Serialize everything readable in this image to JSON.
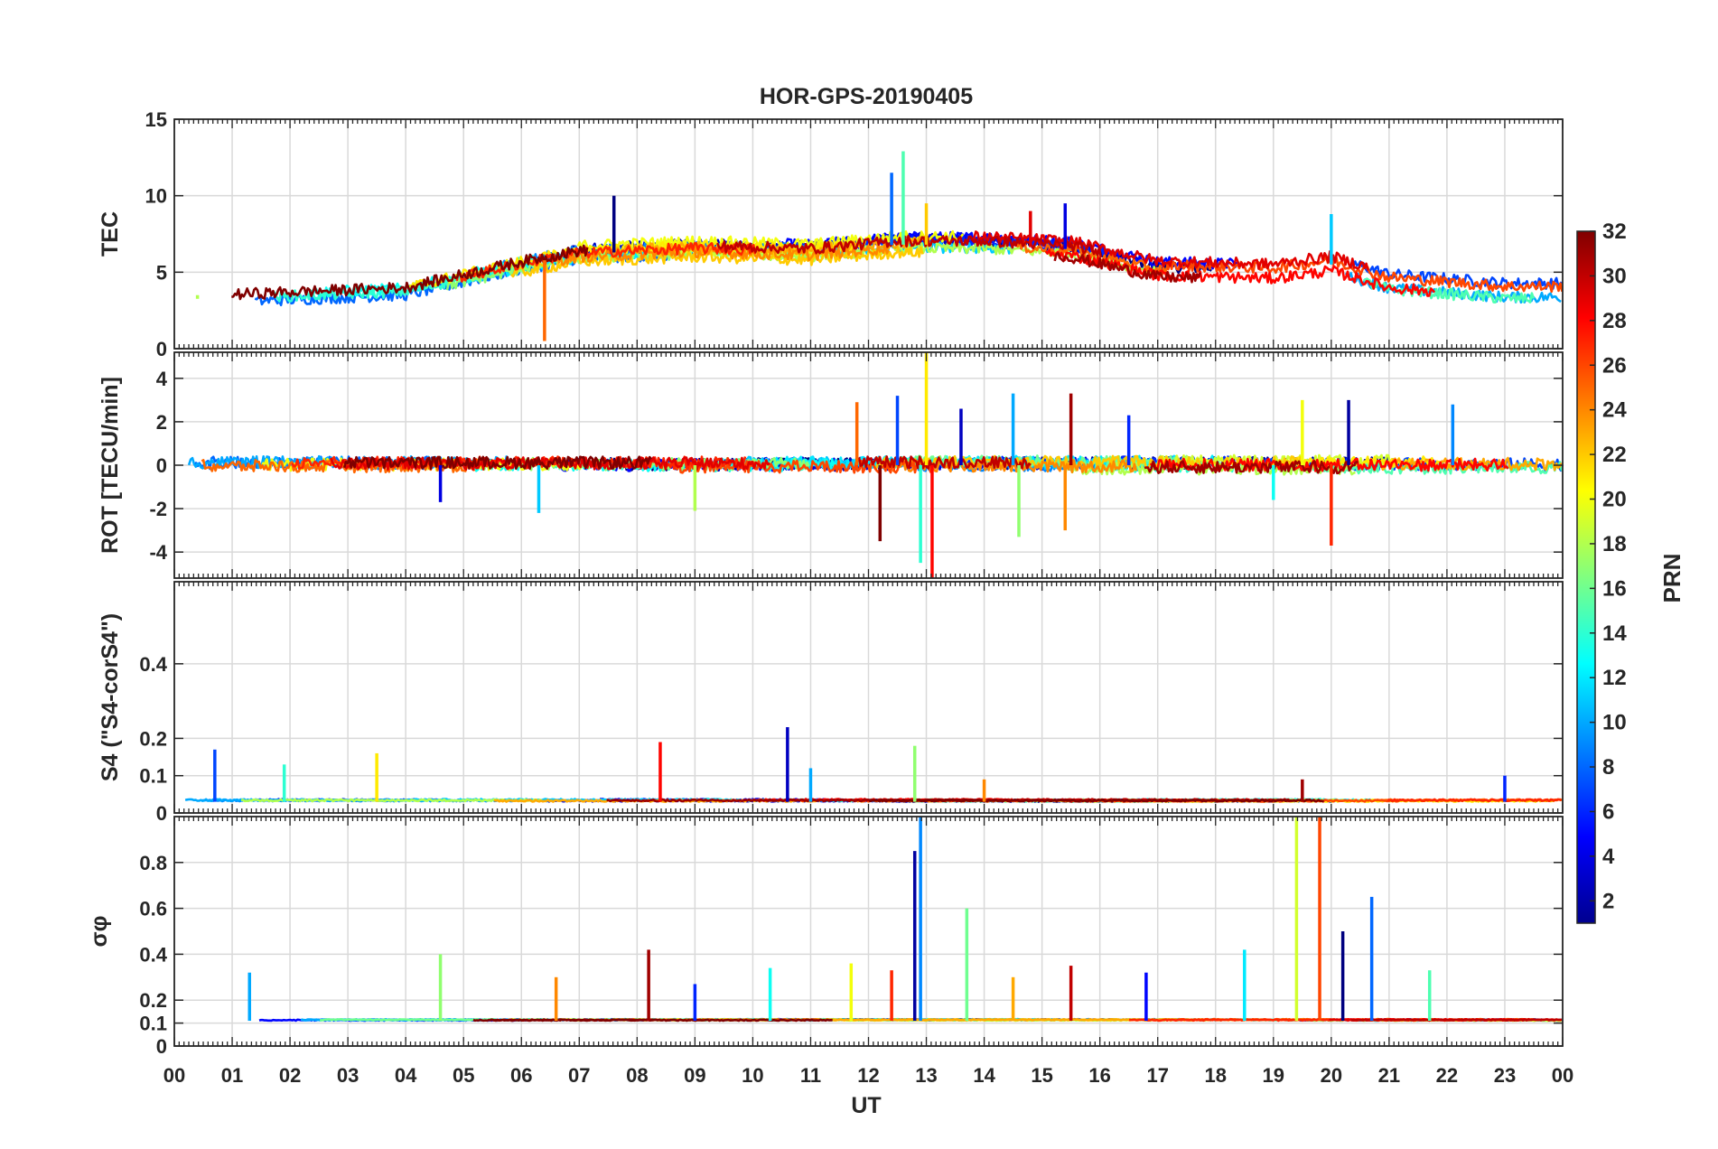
{
  "chart_data": {
    "type": "line",
    "title": "HOR-GPS-20190405",
    "xlabel": "UT",
    "x_tick_labels": [
      "00",
      "01",
      "02",
      "03",
      "04",
      "05",
      "06",
      "07",
      "08",
      "09",
      "10",
      "11",
      "12",
      "13",
      "14",
      "15",
      "16",
      "17",
      "18",
      "19",
      "20",
      "21",
      "22",
      "23",
      "00"
    ],
    "xlim": [
      0,
      24
    ],
    "panels": [
      {
        "ylabel": "TEC",
        "ylim": [
          0,
          15
        ],
        "y_ticks": [
          0,
          5,
          10,
          15
        ],
        "y_tick_labels": [
          "0",
          "5",
          "10",
          "15"
        ],
        "typical_level": [
          [
            0,
            3.2
          ],
          [
            2,
            3.5
          ],
          [
            4,
            3.8
          ],
          [
            6,
            5.5
          ],
          [
            7,
            6.2
          ],
          [
            9,
            6.5
          ],
          [
            11,
            6.3
          ],
          [
            12.5,
            6.8
          ],
          [
            14,
            6.8
          ],
          [
            15.5,
            6.5
          ],
          [
            17,
            5.2
          ],
          [
            19,
            5.0
          ],
          [
            20,
            5.5
          ],
          [
            21,
            4.4
          ],
          [
            23,
            3.8
          ],
          [
            24,
            3.8
          ]
        ],
        "spread": 1.2,
        "spikes": [
          [
            7.6,
            10
          ],
          [
            12.4,
            11.5
          ],
          [
            12.6,
            12.9
          ],
          [
            13,
            9.5
          ],
          [
            14.8,
            9
          ],
          [
            15.4,
            9.5
          ],
          [
            20,
            8.8
          ],
          [
            0.4,
            3.5
          ],
          [
            6.4,
            0.5
          ]
        ]
      },
      {
        "ylabel": "ROT [TECU/min]",
        "ylim": [
          -5.2,
          5.2
        ],
        "y_ticks": [
          -4,
          -2,
          0,
          2,
          4
        ],
        "y_tick_labels": [
          "-4",
          "-2",
          "0",
          "2",
          "4"
        ],
        "typical_level": [
          [
            0,
            0
          ],
          [
            24,
            0
          ]
        ],
        "spread": 0.4,
        "spikes": [
          [
            4.6,
            -1.7
          ],
          [
            6.3,
            -2.2
          ],
          [
            9,
            -2.1
          ],
          [
            11.8,
            2.9
          ],
          [
            12.2,
            -3.5
          ],
          [
            12.5,
            3.2
          ],
          [
            12.9,
            -4.5
          ],
          [
            13,
            5.2
          ],
          [
            13.1,
            -5.2
          ],
          [
            13.6,
            2.6
          ],
          [
            14.5,
            3.3
          ],
          [
            14.6,
            -3.3
          ],
          [
            15.4,
            -3.0
          ],
          [
            15.5,
            3.3
          ],
          [
            16.5,
            2.3
          ],
          [
            19,
            -1.6
          ],
          [
            19.5,
            3.0
          ],
          [
            20,
            -3.7
          ],
          [
            20.3,
            3.0
          ],
          [
            22.1,
            2.8
          ]
        ]
      },
      {
        "ylabel": "S4 (\"S4-corS4\")",
        "ylim": [
          0,
          0.62
        ],
        "y_ticks": [
          0,
          0.1,
          0.2,
          0.4
        ],
        "y_tick_labels": [
          "0",
          "0.1",
          "0.2",
          "0.4"
        ],
        "typical_level": [
          [
            0,
            0.03
          ],
          [
            24,
            0.03
          ]
        ],
        "spread": 0.02,
        "spikes": [
          [
            0.7,
            0.17
          ],
          [
            1.9,
            0.13
          ],
          [
            3.5,
            0.16
          ],
          [
            8.4,
            0.19
          ],
          [
            10.6,
            0.23
          ],
          [
            11,
            0.12
          ],
          [
            12.8,
            0.18
          ],
          [
            14,
            0.09
          ],
          [
            19.5,
            0.09
          ],
          [
            23,
            0.1
          ]
        ]
      },
      {
        "ylabel": "σφ",
        "ylim": [
          0,
          1.0
        ],
        "y_ticks": [
          0,
          0.1,
          0.2,
          0.4,
          0.6,
          0.8
        ],
        "y_tick_labels": [
          "0",
          "0.1",
          "0.2",
          "0.4",
          "0.6",
          "0.8"
        ],
        "typical_level": [
          [
            0,
            0.11
          ],
          [
            24,
            0.11
          ]
        ],
        "spread": 0.02,
        "spikes": [
          [
            1.3,
            0.32
          ],
          [
            4.6,
            0.4
          ],
          [
            6.6,
            0.3
          ],
          [
            8.2,
            0.42
          ],
          [
            9,
            0.27
          ],
          [
            10.3,
            0.34
          ],
          [
            11.7,
            0.36
          ],
          [
            12.4,
            0.33
          ],
          [
            12.8,
            0.85
          ],
          [
            12.9,
            1.0
          ],
          [
            13.7,
            0.6
          ],
          [
            14.5,
            0.3
          ],
          [
            15.5,
            0.35
          ],
          [
            16.8,
            0.32
          ],
          [
            18.5,
            0.42
          ],
          [
            19.4,
            1.0
          ],
          [
            19.8,
            1.0
          ],
          [
            20.2,
            0.5
          ],
          [
            20.7,
            0.65
          ],
          [
            21.7,
            0.33
          ]
        ]
      }
    ],
    "colorbar": {
      "label": "PRN",
      "range": [
        1,
        32
      ],
      "tick_labels": [
        "2",
        "4",
        "6",
        "8",
        "10",
        "12",
        "14",
        "16",
        "18",
        "20",
        "22",
        "24",
        "26",
        "28",
        "30",
        "32"
      ],
      "colormap": "jet",
      "colors": [
        "#00008f",
        "#0000ff",
        "#0080ff",
        "#00ffff",
        "#80ff80",
        "#ffff00",
        "#ff8000",
        "#ff0000",
        "#800000"
      ]
    },
    "series_prn": [
      1,
      2,
      3,
      4,
      5,
      6,
      7,
      8,
      9,
      10,
      11,
      12,
      13,
      14,
      15,
      16,
      17,
      18,
      19,
      20,
      21,
      22,
      23,
      24,
      25,
      26,
      27,
      28,
      29,
      30,
      31,
      32
    ],
    "grid": true
  }
}
